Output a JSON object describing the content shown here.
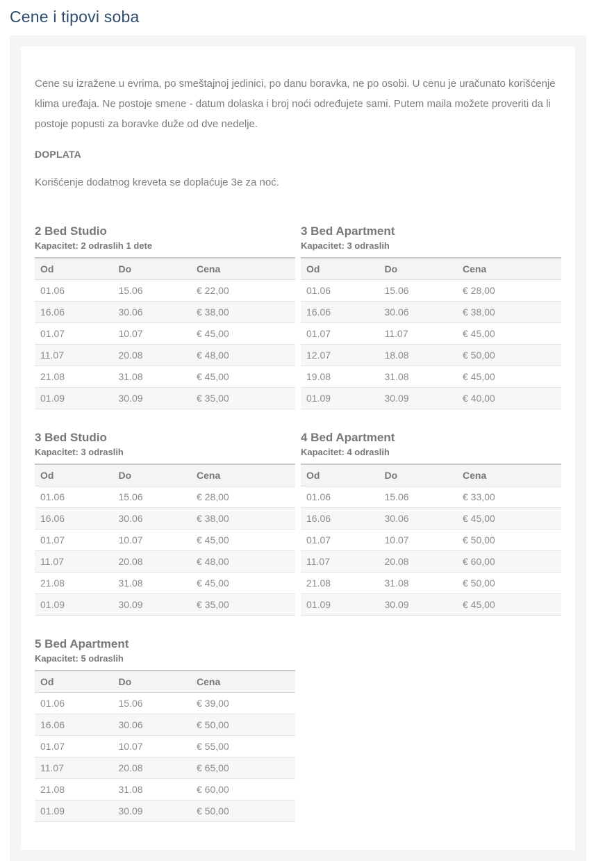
{
  "page": {
    "title": "Cene i tipovi soba"
  },
  "intro": {
    "paragraph": "Cene su izražene u evrima, po smeštajnoj jedinici, po danu boravka, ne po osobi. U cenu je uračunato korišćenje klima uređaja. Ne postoje smene - datum dolaska i broj noći određujete sami. Putem maila možete proveriti da li postoje popusti za boravke duže od dve nedelje.",
    "doplata_heading": "DOPLATA",
    "doplata_note": "Korišćenje dodatnog kreveta se doplaćuje 3e za noć."
  },
  "columns": {
    "od": "Od",
    "do": "Do",
    "cena": "Cena"
  },
  "rooms": [
    {
      "name": "2 Bed Studio",
      "capacity": "Kapacitet: 2 odraslih 1 dete",
      "rows": [
        {
          "od": "01.06",
          "do": "15.06",
          "cena": "€ 22,00"
        },
        {
          "od": "16.06",
          "do": "30.06",
          "cena": "€ 38,00"
        },
        {
          "od": "01.07",
          "do": "10.07",
          "cena": "€ 45,00"
        },
        {
          "od": "11.07",
          "do": "20.08",
          "cena": "€ 48,00"
        },
        {
          "od": "21.08",
          "do": "31.08",
          "cena": "€ 45,00"
        },
        {
          "od": "01.09",
          "do": "30.09",
          "cena": "€ 35,00"
        }
      ]
    },
    {
      "name": "3 Bed Apartment",
      "capacity": "Kapacitet: 3 odraslih",
      "rows": [
        {
          "od": "01.06",
          "do": "15.06",
          "cena": "€ 28,00"
        },
        {
          "od": "16.06",
          "do": "30.06",
          "cena": "€ 38,00"
        },
        {
          "od": "01.07",
          "do": "11.07",
          "cena": "€ 45,00"
        },
        {
          "od": "12.07",
          "do": "18.08",
          "cena": "€ 50,00"
        },
        {
          "od": "19.08",
          "do": "31.08",
          "cena": "€ 45,00"
        },
        {
          "od": "01.09",
          "do": "30.09",
          "cena": "€ 40,00"
        }
      ]
    },
    {
      "name": "3 Bed Studio",
      "capacity": "Kapacitet: 3 odraslih",
      "rows": [
        {
          "od": "01.06",
          "do": "15.06",
          "cena": "€ 28,00"
        },
        {
          "od": "16.06",
          "do": "30.06",
          "cena": "€ 38,00"
        },
        {
          "od": "01.07",
          "do": "10.07",
          "cena": "€ 45,00"
        },
        {
          "od": "11.07",
          "do": "20.08",
          "cena": "€ 48,00"
        },
        {
          "od": "21.08",
          "do": "31.08",
          "cena": "€ 45,00"
        },
        {
          "od": "01.09",
          "do": "30.09",
          "cena": "€ 35,00"
        }
      ]
    },
    {
      "name": "4 Bed Apartment",
      "capacity": "Kapacitet: 4 odraslih",
      "rows": [
        {
          "od": "01.06",
          "do": "15.06",
          "cena": "€ 33,00"
        },
        {
          "od": "16.06",
          "do": "30.06",
          "cena": "€ 45,00"
        },
        {
          "od": "01.07",
          "do": "10.07",
          "cena": "€ 50,00"
        },
        {
          "od": "11.07",
          "do": "20.08",
          "cena": "€ 60,00"
        },
        {
          "od": "21.08",
          "do": "31.08",
          "cena": "€ 50,00"
        },
        {
          "od": "01.09",
          "do": "30.09",
          "cena": "€ 45,00"
        }
      ]
    },
    {
      "name": "5 Bed Apartment",
      "capacity": "Kapacitet: 5 odraslih",
      "rows": [
        {
          "od": "01.06",
          "do": "15.06",
          "cena": "€ 39,00"
        },
        {
          "od": "16.06",
          "do": "30.06",
          "cena": "€ 50,00"
        },
        {
          "od": "01.07",
          "do": "10.07",
          "cena": "€ 55,00"
        },
        {
          "od": "11.07",
          "do": "20.08",
          "cena": "€ 65,00"
        },
        {
          "od": "21.08",
          "do": "31.08",
          "cena": "€ 60,00"
        },
        {
          "od": "01.09",
          "do": "30.09",
          "cena": "€ 50,00"
        }
      ]
    }
  ],
  "colors": {
    "title_text": "#2e4c6d",
    "body_text": "#7d7d7d",
    "label_text": "#75787b",
    "panel_background": "#f5f5f5",
    "row_stripe": "#f7f7f7",
    "table_border": "#e5e5e5",
    "header_top_border": "#c9c9c9"
  }
}
